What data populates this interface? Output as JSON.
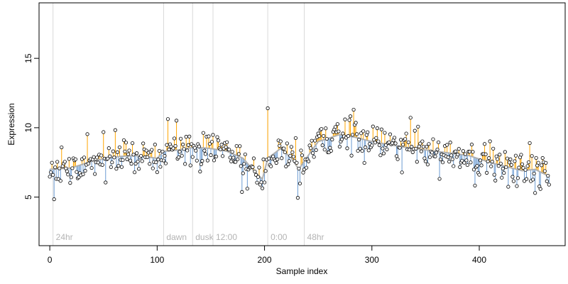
{
  "chart_data": {
    "type": "scatter",
    "title": "",
    "xlabel": "Sample index",
    "ylabel": "Expression",
    "xlim": [
      -10,
      480
    ],
    "ylim": [
      1.5,
      19
    ],
    "xticks": [
      0,
      100,
      200,
      300,
      400
    ],
    "yticks": [
      5,
      10,
      15
    ],
    "grid": false,
    "legend": "none",
    "colors": {
      "points": "#000000",
      "fitted_line": "#b0b0b0",
      "residual_positive": "#ffa500",
      "residual_negative": "#6b9bd2",
      "marker_lines": "#d9d9d9",
      "marker_labels": "#b3b3b3"
    },
    "markers": [
      {
        "x": 3,
        "label": "24hr"
      },
      {
        "x": 106,
        "label": "dawn"
      },
      {
        "x": 133,
        "label": "dusk"
      },
      {
        "x": 152,
        "label": "12:00"
      },
      {
        "x": 203,
        "label": "0:00"
      },
      {
        "x": 237,
        "label": "48hr"
      }
    ],
    "fitted_profile": [
      [
        0,
        7.0
      ],
      [
        20,
        7.1
      ],
      [
        40,
        7.6
      ],
      [
        60,
        7.9
      ],
      [
        80,
        8.0
      ],
      [
        100,
        7.8
      ],
      [
        106,
        8.3
      ],
      [
        120,
        8.4
      ],
      [
        135,
        8.6
      ],
      [
        150,
        8.5
      ],
      [
        165,
        8.3
      ],
      [
        180,
        7.8
      ],
      [
        190,
        6.9
      ],
      [
        198,
        6.3
      ],
      [
        203,
        7.8
      ],
      [
        215,
        8.5
      ],
      [
        225,
        7.8
      ],
      [
        232,
        7.0
      ],
      [
        237,
        7.6
      ],
      [
        250,
        9.0
      ],
      [
        270,
        9.5
      ],
      [
        285,
        9.3
      ],
      [
        300,
        9.0
      ],
      [
        330,
        8.6
      ],
      [
        360,
        8.3
      ],
      [
        390,
        8.0
      ],
      [
        410,
        7.5
      ],
      [
        425,
        7.2
      ],
      [
        440,
        6.9
      ],
      [
        452,
        7.0
      ],
      [
        465,
        6.5
      ]
    ],
    "notes": "Points are read approximately; roughly 465 samples with expression between about 5.3 and 11.4. Each point is linked by a vertical residual segment to the fitted grey curve (orange above, blue below)."
  }
}
